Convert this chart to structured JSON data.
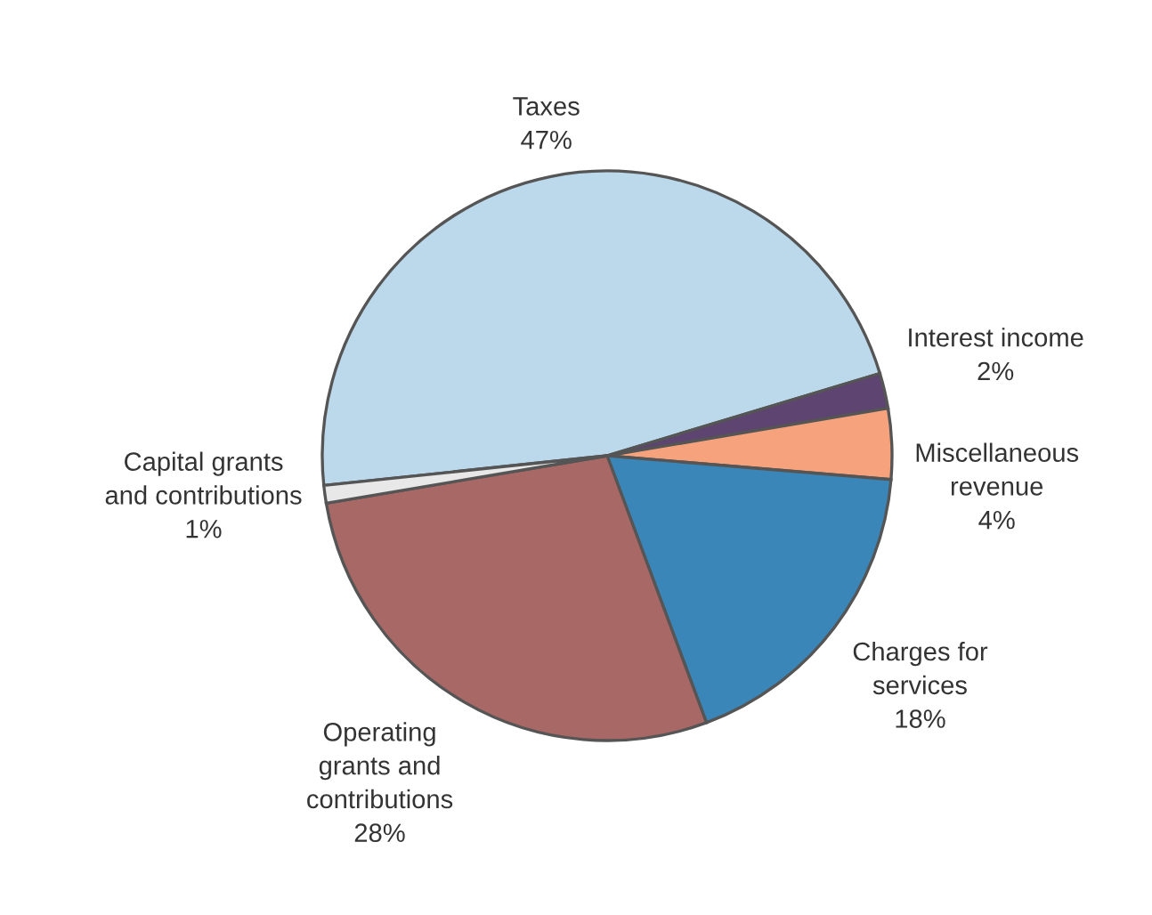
{
  "chart_data": {
    "type": "pie",
    "categories": [
      "Taxes",
      "Interest income",
      "Miscellaneous\nrevenue",
      "Charges for\nservices",
      "Operating\ngrants and\ncontributions",
      "Capital grants\nand contributions"
    ],
    "values": [
      47,
      2,
      4,
      18,
      28,
      1
    ],
    "value_labels": [
      "47%",
      "2%",
      "4%",
      "18%",
      "28%",
      "1%"
    ],
    "colors": [
      "#bcd9ec",
      "#5e4470",
      "#f6a27c",
      "#3b86b8",
      "#a86866",
      "#e8e8e8"
    ]
  }
}
